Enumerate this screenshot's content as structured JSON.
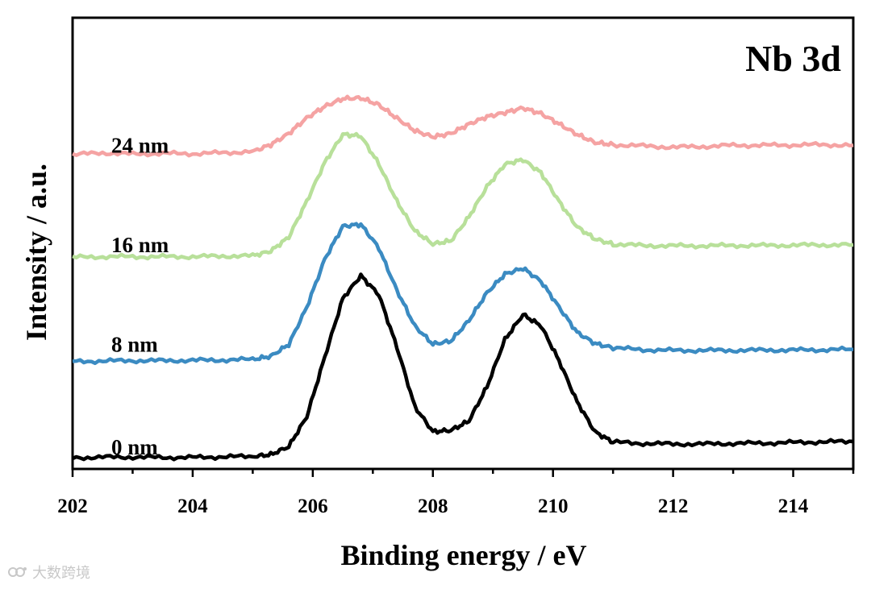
{
  "chart_data": {
    "type": "line",
    "title": "Nb 3d",
    "xlabel": "Binding energy / eV",
    "ylabel": "Intensity / a.u.",
    "xlim": [
      202,
      215
    ],
    "ylim": [
      0,
      1.45
    ],
    "x_ticks": [
      202,
      204,
      206,
      208,
      210,
      212,
      214
    ],
    "x_tick_labels": [
      "202",
      "204",
      "206",
      "208",
      "210",
      "212",
      "214"
    ],
    "y_ticks_shown": false,
    "grid": false,
    "legend": "inline labels at left",
    "series": [
      {
        "name": "0 nm",
        "label": "0 nm",
        "color": "#000000",
        "x": [
          202,
          202.5,
          203,
          203.5,
          204,
          204.5,
          205,
          205.3,
          205.6,
          205.9,
          206.2,
          206.5,
          206.8,
          207.1,
          207.4,
          207.7,
          208,
          208.3,
          208.6,
          208.9,
          209.2,
          209.5,
          209.8,
          210.1,
          210.4,
          210.7,
          211,
          211.5,
          212,
          212.5,
          213,
          213.5,
          214,
          214.5,
          215
        ],
        "values": [
          0.036,
          0.038,
          0.038,
          0.037,
          0.037,
          0.039,
          0.04,
          0.046,
          0.072,
          0.168,
          0.36,
          0.548,
          0.621,
          0.56,
          0.392,
          0.2,
          0.12,
          0.124,
          0.154,
          0.264,
          0.416,
          0.496,
          0.46,
          0.348,
          0.216,
          0.119,
          0.086,
          0.082,
          0.08,
          0.08,
          0.082,
          0.083,
          0.085,
          0.087,
          0.088
        ]
      },
      {
        "name": "8 nm",
        "label": "8 nm",
        "color": "#3b8bc2",
        "x": [
          202,
          202.5,
          203,
          203.5,
          204,
          204.5,
          205,
          205.3,
          205.6,
          205.9,
          206.2,
          206.5,
          206.8,
          207.1,
          207.4,
          207.7,
          208,
          208.3,
          208.6,
          208.9,
          209.2,
          209.5,
          209.8,
          210.1,
          210.4,
          210.7,
          211,
          211.5,
          212,
          212.5,
          213,
          213.5,
          214,
          214.5,
          215
        ],
        "values": [
          0.345,
          0.347,
          0.348,
          0.348,
          0.349,
          0.35,
          0.352,
          0.362,
          0.4,
          0.52,
          0.674,
          0.78,
          0.786,
          0.71,
          0.574,
          0.459,
          0.401,
          0.411,
          0.477,
          0.566,
          0.626,
          0.645,
          0.603,
          0.52,
          0.439,
          0.403,
          0.389,
          0.383,
          0.381,
          0.381,
          0.381,
          0.382,
          0.382,
          0.383,
          0.384
        ]
      },
      {
        "name": "16 nm",
        "label": "16 nm",
        "color": "#b8e09a",
        "x": [
          202,
          202.5,
          203,
          203.5,
          204,
          204.5,
          205,
          205.3,
          205.6,
          205.9,
          206.2,
          206.5,
          206.8,
          207.1,
          207.4,
          207.7,
          208,
          208.3,
          208.6,
          208.9,
          209.2,
          209.5,
          209.8,
          210.1,
          210.4,
          210.7,
          211,
          211.5,
          212,
          212.5,
          213,
          213.5,
          214,
          214.5,
          215
        ],
        "values": [
          0.68,
          0.682,
          0.682,
          0.682,
          0.682,
          0.684,
          0.685,
          0.7,
          0.745,
          0.86,
          0.985,
          1.075,
          1.07,
          0.98,
          0.86,
          0.765,
          0.723,
          0.733,
          0.81,
          0.907,
          0.979,
          0.994,
          0.952,
          0.86,
          0.778,
          0.739,
          0.722,
          0.718,
          0.717,
          0.717,
          0.718,
          0.718,
          0.719,
          0.72,
          0.72
        ]
      },
      {
        "name": "24 nm",
        "label": "24 nm",
        "color": "#f5a3a3",
        "x": [
          202,
          202.5,
          203,
          203.5,
          204,
          204.5,
          205,
          205.3,
          205.6,
          205.9,
          206.2,
          206.5,
          206.8,
          207.1,
          207.4,
          207.7,
          208,
          208.3,
          208.6,
          208.9,
          209.2,
          209.5,
          209.8,
          210.1,
          210.4,
          210.7,
          211,
          211.5,
          212,
          212.5,
          213,
          213.5,
          214,
          214.5,
          215
        ],
        "values": [
          1.01,
          1.016,
          1.012,
          1.014,
          1.013,
          1.016,
          1.02,
          1.042,
          1.078,
          1.128,
          1.165,
          1.19,
          1.192,
          1.17,
          1.127,
          1.087,
          1.067,
          1.078,
          1.108,
          1.132,
          1.145,
          1.16,
          1.142,
          1.109,
          1.075,
          1.049,
          1.042,
          1.038,
          1.034,
          1.036,
          1.04,
          1.04,
          1.041,
          1.042,
          1.04
        ]
      }
    ],
    "series_label_y": [
      0.07,
      0.4,
      0.72,
      1.04
    ]
  },
  "watermark": {
    "text": "大数跨境"
  }
}
